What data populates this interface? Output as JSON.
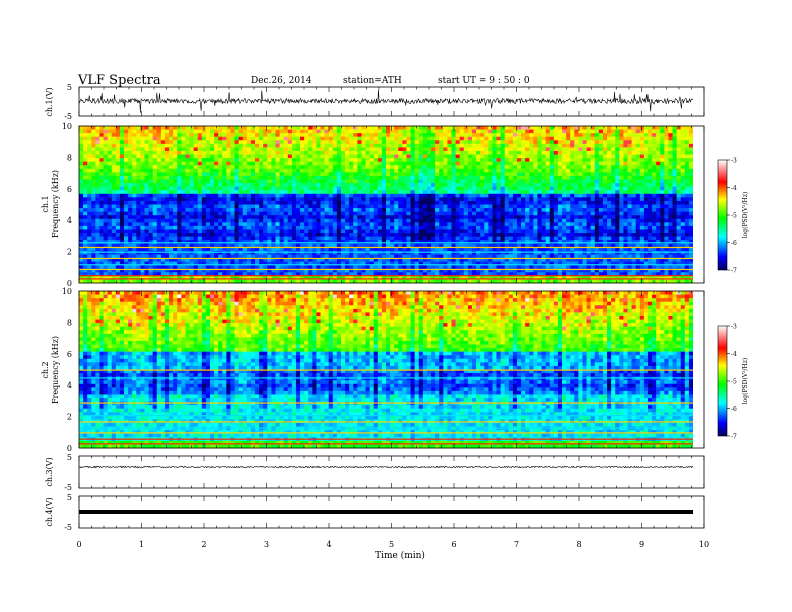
{
  "header": {
    "title": "VLF  Spectra",
    "date": "Dec.26, 2014",
    "station": "station=ATH",
    "start": "start  UT  =   9  : 50 : 0"
  },
  "colors": {
    "colormap": [
      "#000060",
      "#0000ff",
      "#00ffff",
      "#00ff00",
      "#ffff00",
      "#ff0000",
      "#ffffff"
    ],
    "trace": "#000000"
  },
  "chart_data": [
    {
      "type": "line",
      "ylabel": "ch.1(V)",
      "ylim": [
        -5,
        5
      ],
      "yticks": [
        "5",
        "-5"
      ],
      "xlim": [
        0,
        10
      ],
      "description_of_trace": "noisy waveform centred near 0"
    },
    {
      "type": "heatmap",
      "ylabel_channel": "ch.1",
      "ylabel": "Frequency  (kHz)",
      "ylim": [
        0,
        10
      ],
      "yticks": [
        "0",
        "2",
        "4",
        "6",
        "8",
        "10"
      ],
      "xlim": [
        0,
        9.8
      ],
      "colorbar": {
        "label": "log(PSD(V²/Hz)",
        "range": [
          -7,
          -3
        ],
        "ticks": [
          "-3",
          "-4",
          "-5",
          "-6",
          "-7"
        ]
      }
    },
    {
      "type": "heatmap",
      "ylabel_channel": "ch.2",
      "ylabel": "Frequency  (kHz)",
      "ylim": [
        0,
        10
      ],
      "yticks": [
        "0",
        "2",
        "4",
        "6",
        "8",
        "10"
      ],
      "xlim": [
        0,
        9.8
      ],
      "colorbar": {
        "label": "log(PSD(V²/Hz)",
        "range": [
          -7,
          -3
        ],
        "ticks": [
          "-3",
          "-4",
          "-5",
          "-6",
          "-7"
        ]
      }
    },
    {
      "type": "line",
      "ylabel": "ch.3(V)",
      "ylim": [
        -5,
        5
      ],
      "yticks": [
        "5",
        "-5"
      ],
      "xlim": [
        0,
        10
      ]
    },
    {
      "type": "line",
      "ylabel": "ch.4(V)",
      "ylim": [
        -5,
        5
      ],
      "yticks": [
        "5",
        "-5"
      ],
      "xlim": [
        0,
        10
      ]
    }
  ],
  "xaxis": {
    "label": "Time  (min)",
    "ticks": [
      "0",
      "1",
      "2",
      "3",
      "4",
      "5",
      "6",
      "7",
      "8",
      "9",
      "10"
    ]
  }
}
